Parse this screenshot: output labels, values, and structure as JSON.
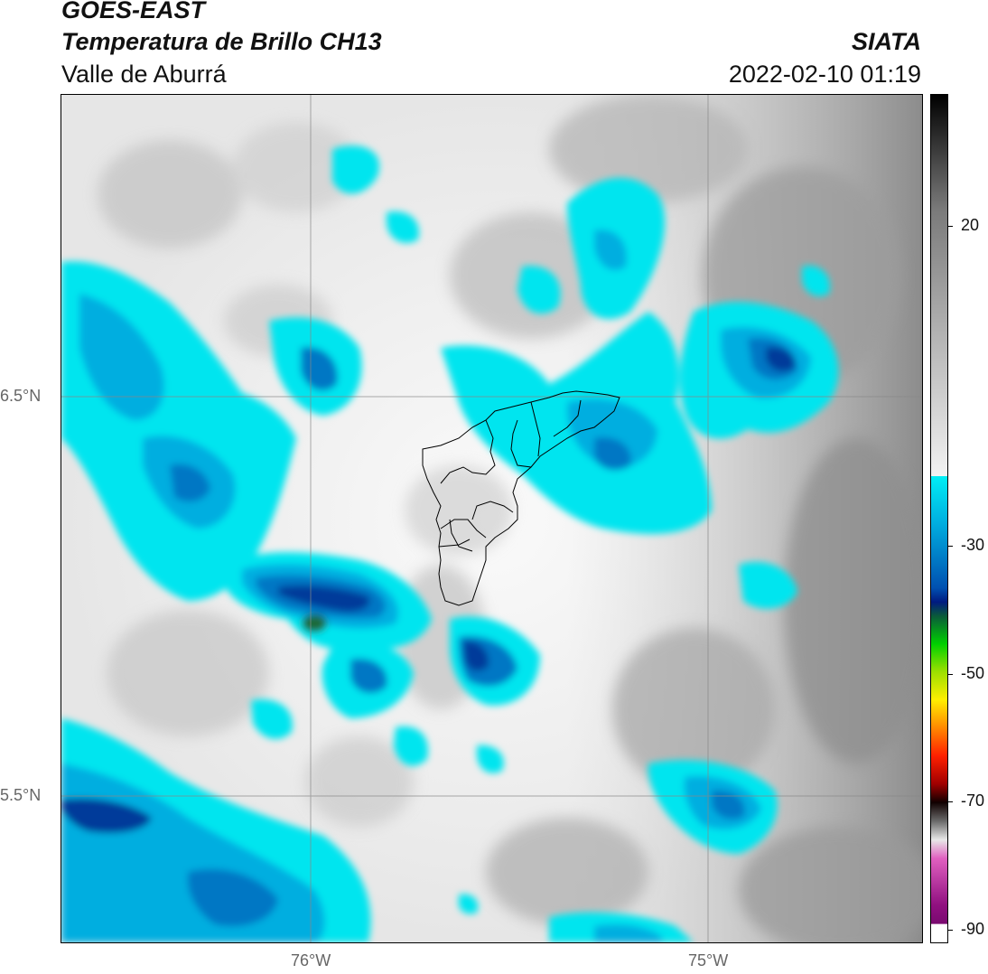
{
  "header": {
    "satellite": "GOES-EAST",
    "product": "Temperatura de Brillo CH13",
    "region": "Valle de Aburrá",
    "organization": "SIATA",
    "timestamp": "2022-02-10 01:19"
  },
  "map": {
    "lat_labels": [
      "6.5°N",
      "5.5°N"
    ],
    "lon_labels": [
      "76°W",
      "75°W"
    ],
    "colors": {
      "cloud_light": "#00e5ef",
      "cloud_mid": "#00aee0",
      "cloud_deep": "#0077c4",
      "cloud_core": "#003a9a",
      "ground_light": "#f2f2f2",
      "ground_dark": "#8f8f8f",
      "boundary": "#000000",
      "gridline": "#888888"
    }
  },
  "colorbar": {
    "tick_labels": [
      "20",
      "-30",
      "-50",
      "-70",
      "-90"
    ]
  }
}
